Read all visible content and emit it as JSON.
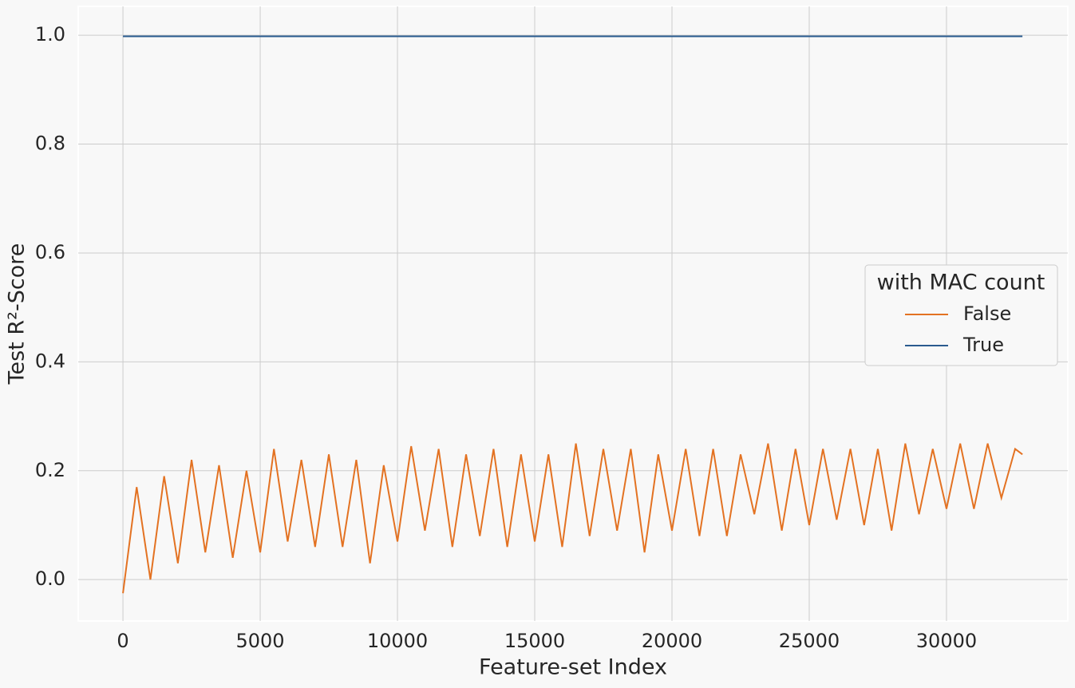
{
  "chart_data": {
    "type": "line",
    "x_label": "Feature-set Index",
    "y_label": "Test R²-Score",
    "xlim": [
      -1630,
      34420
    ],
    "ylim": [
      -0.076,
      1.053
    ],
    "xticks": [
      0,
      5000,
      10000,
      15000,
      20000,
      25000,
      30000
    ],
    "yticks": [
      {
        "value": 0,
        "label": "0.0"
      },
      0.2,
      0.4,
      0.6,
      0.8,
      {
        "value": 1,
        "label": "1.0"
      }
    ],
    "grid": true,
    "legend_title": "with MAC count",
    "legend_position": "right",
    "series": [
      {
        "name": "False",
        "color": "#e37222",
        "x": [
          0,
          500,
          1000,
          1500,
          2000,
          2500,
          3000,
          3500,
          4000,
          4500,
          5000,
          5500,
          6000,
          6500,
          7000,
          7500,
          8000,
          8500,
          9000,
          9500,
          10000,
          10500,
          11000,
          11500,
          12000,
          12500,
          13000,
          13500,
          14000,
          14500,
          15000,
          15500,
          16000,
          16500,
          17000,
          17500,
          18000,
          18500,
          19000,
          19500,
          20000,
          20500,
          21000,
          21500,
          22000,
          22500,
          23000,
          23500,
          24000,
          24500,
          25000,
          25500,
          26000,
          26500,
          27000,
          27500,
          28000,
          28500,
          29000,
          29500,
          30000,
          30500,
          31000,
          31500,
          32000,
          32500,
          32767
        ],
        "values": [
          -0.025,
          0.17,
          0.0,
          0.19,
          0.03,
          0.22,
          0.05,
          0.21,
          0.04,
          0.2,
          0.05,
          0.24,
          0.07,
          0.22,
          0.06,
          0.23,
          0.06,
          0.22,
          0.03,
          0.21,
          0.07,
          0.245,
          0.09,
          0.24,
          0.06,
          0.23,
          0.08,
          0.24,
          0.06,
          0.23,
          0.07,
          0.23,
          0.06,
          0.25,
          0.08,
          0.24,
          0.09,
          0.24,
          0.05,
          0.23,
          0.09,
          0.24,
          0.08,
          0.24,
          0.08,
          0.23,
          0.12,
          0.25,
          0.09,
          0.24,
          0.1,
          0.24,
          0.11,
          0.24,
          0.1,
          0.24,
          0.09,
          0.25,
          0.12,
          0.24,
          0.13,
          0.25,
          0.13,
          0.25,
          0.15,
          0.24,
          0.23
        ]
      },
      {
        "name": "True",
        "color": "#2a5b8f",
        "x": [
          0,
          8000,
          16000,
          24000,
          32767
        ],
        "values": [
          0.998,
          0.998,
          0.998,
          0.998,
          0.998
        ]
      }
    ]
  }
}
